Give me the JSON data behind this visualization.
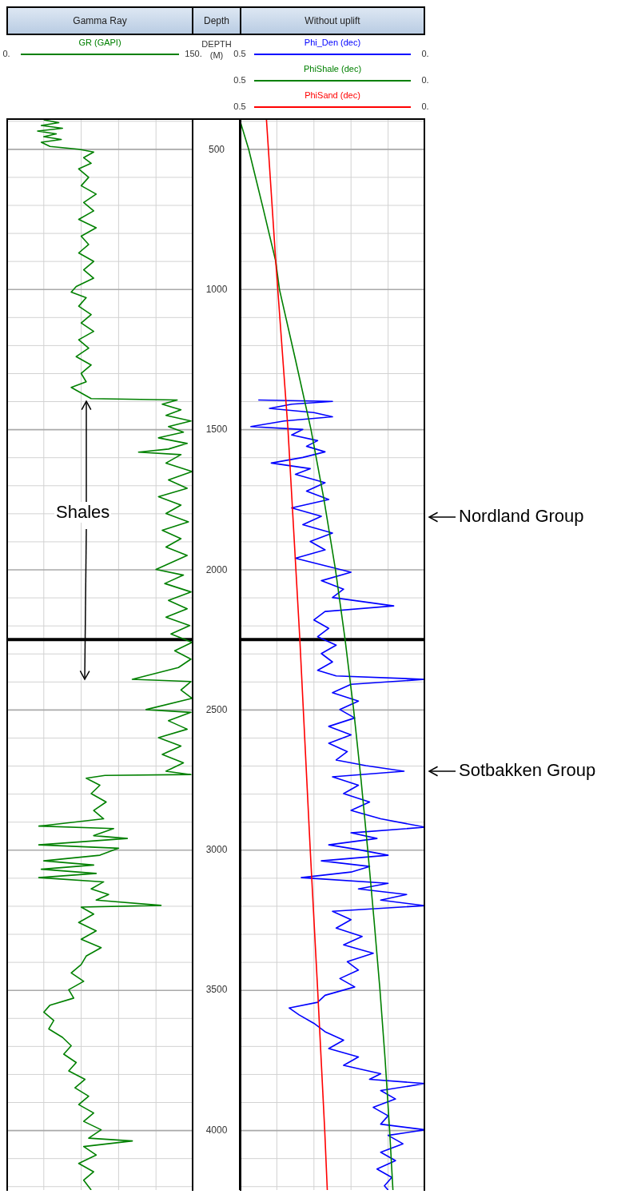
{
  "chart_data": [
    {
      "type": "line",
      "orientation": "horizontal",
      "title": "Gamma Ray",
      "legend": "top",
      "grid": true,
      "tick_labels": "x",
      "xlim": [
        0,
        150
      ],
      "xticks": [
        {
          "value": 0,
          "label": "0."
        },
        {
          "value": 30,
          "label": null
        },
        {
          "value": 60,
          "label": null
        },
        {
          "value": 90,
          "label": null
        },
        {
          "value": 120,
          "label": null
        },
        {
          "value": 150,
          "label": "150."
        }
      ],
      "ylim": [
        4215,
        395
      ],
      "yticks": [
        {
          "value": 400,
          "label": null
        },
        500,
        {
          "value": 600,
          "label": null
        },
        {
          "value": 700,
          "label": null
        },
        {
          "value": 800,
          "label": null
        },
        {
          "value": 900,
          "label": null
        },
        1000,
        {
          "value": 1100,
          "label": null
        },
        {
          "value": 1200,
          "label": null
        },
        {
          "value": 1300,
          "label": null
        },
        {
          "value": 1400,
          "label": null
        },
        1500,
        {
          "value": 1600,
          "label": null
        },
        {
          "value": 1700,
          "label": null
        },
        {
          "value": 1800,
          "label": null
        },
        {
          "value": 1900,
          "label": null
        },
        2000,
        {
          "value": 2100,
          "label": null
        },
        {
          "value": 2200,
          "label": null
        },
        {
          "value": 2300,
          "label": null
        },
        {
          "value": 2400,
          "label": null
        },
        2500,
        {
          "value": 2600,
          "label": null
        },
        {
          "value": 2700,
          "label": null
        },
        {
          "value": 2800,
          "label": null
        },
        {
          "value": 2900,
          "label": null
        },
        3000,
        {
          "value": 3100,
          "label": null
        },
        {
          "value": 3200,
          "label": null
        },
        {
          "value": 3300,
          "label": null
        },
        {
          "value": 3400,
          "label": null
        },
        3500,
        {
          "value": 3600,
          "label": null
        },
        {
          "value": 3700,
          "label": null
        },
        {
          "value": 3800,
          "label": null
        },
        {
          "value": 3900,
          "label": null
        },
        4000,
        {
          "value": 4100,
          "label": null
        },
        {
          "value": 4200,
          "label": null
        }
      ],
      "ref_lines": [
        {
          "axis": "y",
          "value": 2250,
          "color": "#000000"
        }
      ],
      "annotations": [
        "Shales"
      ],
      "series": [
        {
          "name": "GR (GAPI)",
          "color": "#008000",
          "x": [
            395,
            405,
            415,
            425,
            435,
            445,
            455,
            465,
            475,
            490,
            500,
            510,
            530,
            550,
            570,
            600,
            630,
            660,
            690,
            720,
            750,
            780,
            810,
            840,
            870,
            900,
            930,
            960,
            990,
            1010,
            1030,
            1060,
            1090,
            1120,
            1150,
            1180,
            1210,
            1240,
            1270,
            1300,
            1330,
            1350,
            1370,
            1390,
            1395,
            1410,
            1430,
            1450,
            1470,
            1490,
            1510,
            1530,
            1550,
            1570,
            1581,
            1590,
            1620,
            1650,
            1680,
            1710,
            1740,
            1770,
            1800,
            1830,
            1860,
            1890,
            1920,
            1950,
            1980,
            2000,
            2020,
            2050,
            2080,
            2110,
            2140,
            2170,
            2200,
            2230,
            2260,
            2290,
            2320,
            2350,
            2392,
            2400,
            2430,
            2460,
            2500,
            2510,
            2540,
            2570,
            2600,
            2630,
            2660,
            2690,
            2720,
            2732,
            2735,
            2745,
            2770,
            2800,
            2830,
            2860,
            2890,
            2916,
            2925,
            2950,
            2960,
            2983,
            2995,
            3020,
            3040,
            3055,
            3070,
            3085,
            3100,
            3115,
            3140,
            3160,
            3180,
            3199,
            3205,
            3230,
            3260,
            3290,
            3320,
            3350,
            3380,
            3410,
            3440,
            3470,
            3500,
            3530,
            3555,
            3580,
            3610,
            3640,
            3670,
            3700,
            3730,
            3760,
            3790,
            3820,
            3850,
            3880,
            3910,
            3940,
            3970,
            4000,
            4030,
            4040,
            4060,
            4090,
            4120,
            4150,
            4180,
            4215
          ],
          "values": [
            30,
            42,
            28,
            45,
            25,
            40,
            30,
            44,
            28,
            35,
            58,
            70,
            62,
            68,
            58,
            66,
            60,
            72,
            62,
            70,
            58,
            72,
            60,
            66,
            58,
            70,
            62,
            70,
            56,
            52,
            64,
            58,
            68,
            60,
            70,
            58,
            66,
            56,
            68,
            60,
            64,
            52,
            60,
            68,
            137,
            125,
            140,
            128,
            148,
            130,
            142,
            122,
            145,
            130,
            106,
            140,
            128,
            149,
            130,
            145,
            122,
            140,
            128,
            146,
            125,
            140,
            128,
            145,
            130,
            120,
            142,
            127,
            148,
            130,
            145,
            128,
            147,
            132,
            149,
            135,
            148,
            138,
            101,
            148,
            140,
            149,
            112,
            148,
            130,
            145,
            122,
            140,
            125,
            142,
            128,
            148,
            79,
            64,
            75,
            68,
            80,
            70,
            78,
            26,
            86,
            70,
            97,
            26,
            90,
            75,
            30,
            70,
            28,
            72,
            26,
            78,
            68,
            82,
            72,
            124,
            60,
            70,
            58,
            72,
            60,
            76,
            64,
            60,
            52,
            62,
            50,
            54,
            35,
            30,
            38,
            34,
            45,
            52,
            46,
            56,
            50,
            63,
            55,
            66,
            58,
            70,
            62,
            76,
            66,
            101,
            62,
            72,
            58,
            70,
            62,
            68
          ]
        }
      ]
    },
    {
      "type": "line",
      "orientation": "horizontal",
      "title": "Without uplift",
      "ylabel": "DEPTH (M)",
      "legend": "top",
      "grid": true,
      "xlim": [
        0.5,
        0
      ],
      "xticks": [
        {
          "value": 0.5,
          "label": "0.5"
        },
        {
          "value": 0.4,
          "label": null
        },
        {
          "value": 0.3,
          "label": null
        },
        {
          "value": 0.2,
          "label": null
        },
        {
          "value": 0.1,
          "label": null
        },
        {
          "value": 0,
          "label": "0."
        }
      ],
      "ylim": [
        4215,
        395
      ],
      "yticks": [
        {
          "value": 400,
          "label": null
        },
        {
          "value": 500,
          "label": "500"
        },
        {
          "value": 600,
          "label": null
        },
        {
          "value": 700,
          "label": null
        },
        {
          "value": 800,
          "label": null
        },
        {
          "value": 900,
          "label": null
        },
        {
          "value": 1000,
          "label": "1000"
        },
        {
          "value": 1100,
          "label": null
        },
        {
          "value": 1200,
          "label": null
        },
        {
          "value": 1300,
          "label": null
        },
        {
          "value": 1400,
          "label": null
        },
        {
          "value": 1500,
          "label": "1500"
        },
        {
          "value": 1600,
          "label": null
        },
        {
          "value": 1700,
          "label": null
        },
        {
          "value": 1800,
          "label": null
        },
        {
          "value": 1900,
          "label": null
        },
        {
          "value": 2000,
          "label": "2000"
        },
        {
          "value": 2100,
          "label": null
        },
        {
          "value": 2200,
          "label": null
        },
        {
          "value": 2300,
          "label": null
        },
        {
          "value": 2400,
          "label": null
        },
        {
          "value": 2500,
          "label": "2500"
        },
        {
          "value": 2600,
          "label": null
        },
        {
          "value": 2700,
          "label": null
        },
        {
          "value": 2800,
          "label": null
        },
        {
          "value": 2900,
          "label": null
        },
        {
          "value": 3000,
          "label": "3000"
        },
        {
          "value": 3100,
          "label": null
        },
        {
          "value": 3200,
          "label": null
        },
        {
          "value": 3300,
          "label": null
        },
        {
          "value": 3400,
          "label": null
        },
        {
          "value": 3500,
          "label": "3500"
        },
        {
          "value": 3600,
          "label": null
        },
        {
          "value": 3700,
          "label": null
        },
        {
          "value": 3800,
          "label": null
        },
        {
          "value": 3900,
          "label": null
        },
        {
          "value": 4000,
          "label": "4000"
        },
        {
          "value": 4100,
          "label": null
        },
        {
          "value": 4200,
          "label": null
        }
      ],
      "ref_lines": [
        {
          "axis": "y",
          "value": 2250,
          "color": "#000000"
        }
      ],
      "annotations": [
        "Depth",
        "Nordland Group",
        "Sotbakken Group"
      ],
      "series": [
        {
          "name": "Phi_Den (dec)",
          "color": "#0000ff",
          "x": [
            1395,
            1400,
            1410,
            1425,
            1440,
            1455,
            1470,
            1490,
            1500,
            1520,
            1540,
            1560,
            1580,
            1600,
            1620,
            1640,
            1660,
            1690,
            1720,
            1750,
            1780,
            1810,
            1840,
            1870,
            1900,
            1930,
            1960,
            1990,
            2010,
            2040,
            2070,
            2100,
            2130,
            2150,
            2180,
            2210,
            2240,
            2270,
            2300,
            2330,
            2360,
            2380,
            2392,
            2410,
            2440,
            2470,
            2500,
            2530,
            2560,
            2590,
            2620,
            2650,
            2680,
            2700,
            2720,
            2740,
            2770,
            2800,
            2830,
            2860,
            2890,
            2920,
            2940,
            2960,
            2983,
            3000,
            3020,
            3040,
            3060,
            3080,
            3100,
            3120,
            3140,
            3160,
            3180,
            3200,
            3220,
            3250,
            3280,
            3310,
            3340,
            3370,
            3400,
            3430,
            3460,
            3490,
            3520,
            3545,
            3565,
            3590,
            3620,
            3650,
            3680,
            3710,
            3740,
            3770,
            3800,
            3820,
            3835,
            3860,
            3890,
            3920,
            3950,
            3980,
            4000,
            4020,
            4050,
            4080,
            4110,
            4140,
            4170,
            4200,
            4215
          ],
          "values": [
            0.45,
            0.25,
            0.36,
            0.42,
            0.3,
            0.25,
            0.38,
            0.47,
            0.33,
            0.36,
            0.29,
            0.32,
            0.27,
            0.33,
            0.415,
            0.31,
            0.35,
            0.27,
            0.32,
            0.26,
            0.36,
            0.28,
            0.33,
            0.25,
            0.31,
            0.27,
            0.35,
            0.26,
            0.2,
            0.28,
            0.22,
            0.25,
            0.085,
            0.27,
            0.3,
            0.26,
            0.29,
            0.24,
            0.28,
            0.25,
            0.29,
            0.24,
            0.0,
            0.2,
            0.25,
            0.18,
            0.23,
            0.19,
            0.26,
            0.2,
            0.26,
            0.21,
            0.24,
            0.16,
            0.057,
            0.25,
            0.18,
            0.22,
            0.15,
            0.2,
            0.12,
            0.0,
            0.2,
            0.13,
            0.26,
            0.18,
            0.1,
            0.28,
            0.15,
            0.2,
            0.334,
            0.1,
            0.18,
            0.05,
            0.12,
            0.0,
            0.25,
            0.2,
            0.24,
            0.17,
            0.22,
            0.14,
            0.21,
            0.18,
            0.23,
            0.19,
            0.27,
            0.29,
            0.367,
            0.34,
            0.3,
            0.27,
            0.22,
            0.26,
            0.18,
            0.22,
            0.12,
            0.15,
            0.0,
            0.12,
            0.08,
            0.14,
            0.1,
            0.12,
            0.0,
            0.1,
            0.06,
            0.12,
            0.08,
            0.13,
            0.09,
            0.11,
            0.1
          ]
        },
        {
          "name": "PhiShale (dec)",
          "color": "#008000",
          "x": [
            395,
            500,
            700,
            900,
            1000,
            1250,
            1500,
            1750,
            2000,
            2250,
            2500,
            2750,
            3000,
            3250,
            3500,
            3750,
            4000,
            4215
          ],
          "values": [
            0.5,
            0.476,
            0.439,
            0.403,
            0.393,
            0.35,
            0.308,
            0.273,
            0.242,
            0.216,
            0.193,
            0.173,
            0.155,
            0.138,
            0.122,
            0.108,
            0.096,
            0.087
          ]
        },
        {
          "name": "PhiSand (dec)",
          "color": "#ff0000",
          "x": [
            395,
            900,
            1500,
            2250,
            3000,
            3500,
            4000,
            4215
          ],
          "values": [
            0.428,
            0.403,
            0.37,
            0.338,
            0.31,
            0.29,
            0.271,
            0.264
          ]
        }
      ]
    }
  ]
}
